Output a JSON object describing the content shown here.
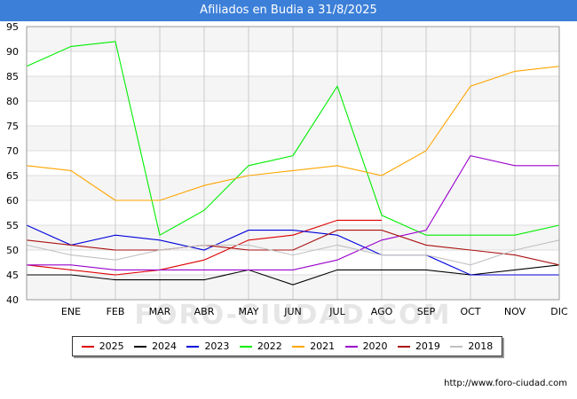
{
  "title": "Afiliados en Budia a 31/8/2025",
  "footer_url": "http://www.foro-ciudad.com",
  "watermark": "FORO-CIUDAD.COM",
  "chart_data": {
    "type": "line",
    "categories": [
      "",
      "ENE",
      "FEB",
      "MAR",
      "ABR",
      "MAY",
      "JUN",
      "JUL",
      "AGO",
      "SEP",
      "OCT",
      "NOV",
      "DIC"
    ],
    "ylim": [
      40,
      95
    ],
    "yticks": [
      40,
      45,
      50,
      55,
      60,
      65,
      70,
      75,
      80,
      85,
      90,
      95
    ],
    "grid": true,
    "legend_position": "bottom",
    "series": [
      {
        "name": "2025",
        "color": "#dd0000",
        "values": [
          47,
          46,
          45,
          46,
          48,
          52,
          53,
          56,
          56,
          null,
          null,
          null,
          null
        ]
      },
      {
        "name": "2024",
        "color": "#000000",
        "values": [
          45,
          45,
          44,
          44,
          44,
          46,
          43,
          46,
          46,
          46,
          45,
          46,
          47
        ]
      },
      {
        "name": "2023",
        "color": "#0000dd",
        "values": [
          55,
          51,
          53,
          52,
          50,
          54,
          54,
          53,
          49,
          49,
          45,
          45,
          45
        ]
      },
      {
        "name": "2022",
        "color": "#00ee00",
        "values": [
          87,
          91,
          92,
          53,
          58,
          67,
          69,
          83,
          57,
          53,
          53,
          53,
          55
        ]
      },
      {
        "name": "2021",
        "color": "#ffa500",
        "values": [
          67,
          66,
          60,
          60,
          63,
          65,
          66,
          67,
          65,
          70,
          83,
          86,
          87
        ]
      },
      {
        "name": "2020",
        "color": "#9900cc",
        "values": [
          47,
          47,
          46,
          46,
          46,
          46,
          46,
          48,
          52,
          54,
          69,
          67,
          67
        ]
      },
      {
        "name": "2019",
        "color": "#aa1111",
        "values": [
          52,
          51,
          50,
          50,
          51,
          50,
          50,
          54,
          54,
          51,
          50,
          49,
          47
        ]
      },
      {
        "name": "2018",
        "color": "#c0c0c0",
        "values": [
          51,
          49,
          48,
          50,
          51,
          51,
          49,
          51,
          49,
          49,
          47,
          50,
          52
        ]
      }
    ]
  }
}
